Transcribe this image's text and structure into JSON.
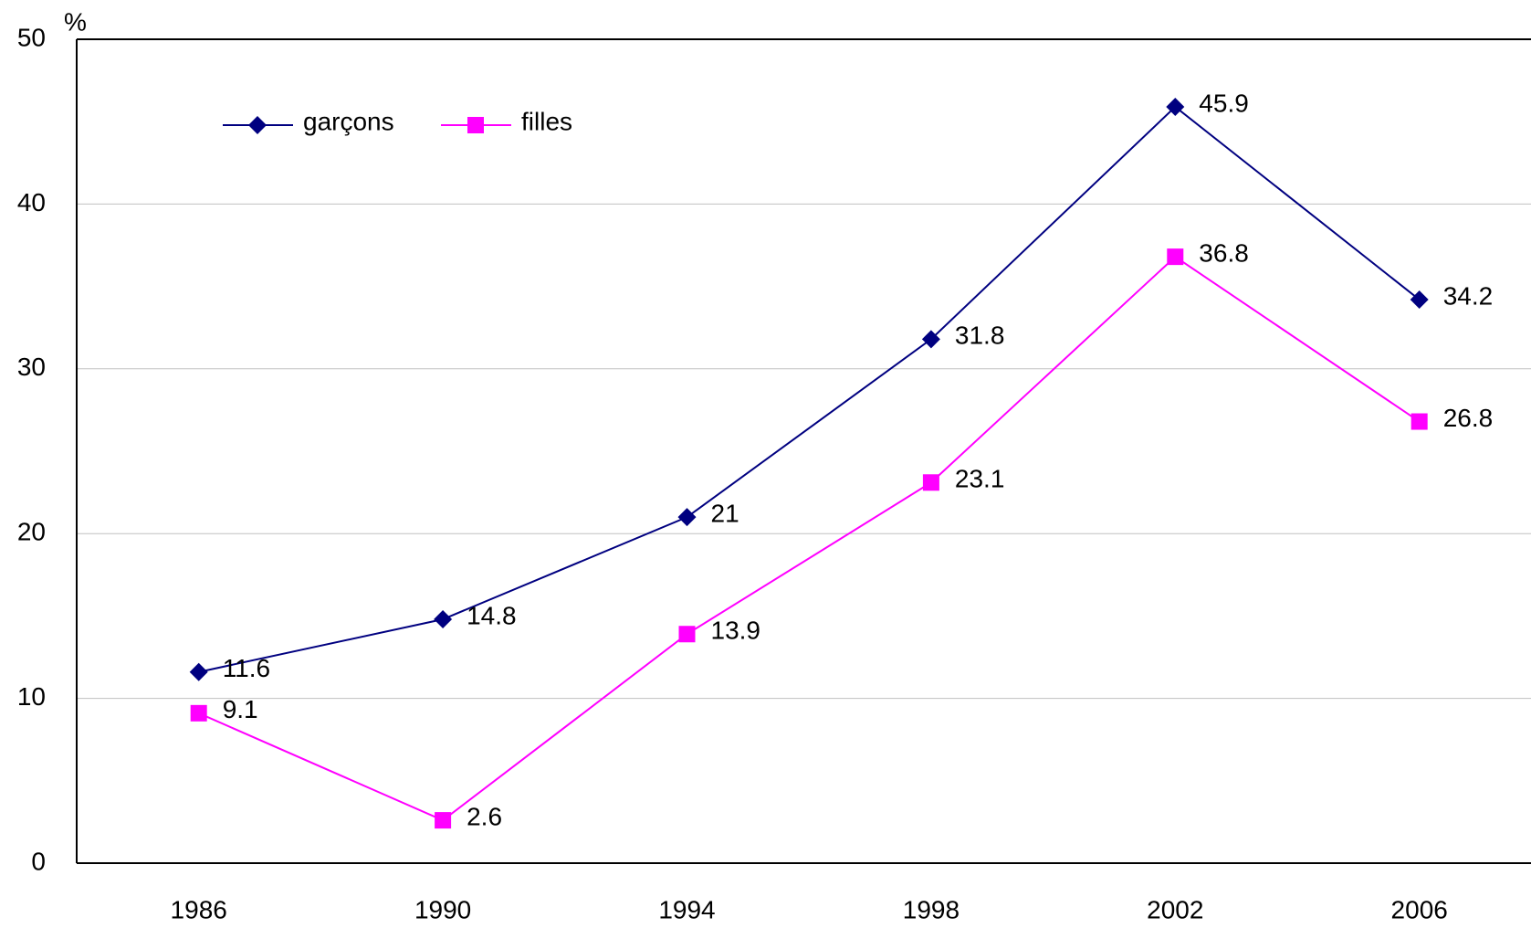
{
  "chart_data": {
    "type": "line",
    "y_label": "%",
    "categories": [
      "1986",
      "1990",
      "1994",
      "1998",
      "2002",
      "2006"
    ],
    "series": [
      {
        "name": "garçons",
        "color": "#000080",
        "marker": "diamond",
        "values": [
          11.6,
          14.8,
          21,
          31.8,
          45.9,
          34.2
        ]
      },
      {
        "name": "filles",
        "color": "#ff00ff",
        "marker": "square",
        "values": [
          9.1,
          2.6,
          13.9,
          23.1,
          36.8,
          26.8
        ]
      }
    ],
    "ylim": [
      0,
      50
    ],
    "yticks": [
      0,
      10,
      20,
      30,
      40,
      50
    ],
    "grid": true,
    "legend": "upper left"
  }
}
